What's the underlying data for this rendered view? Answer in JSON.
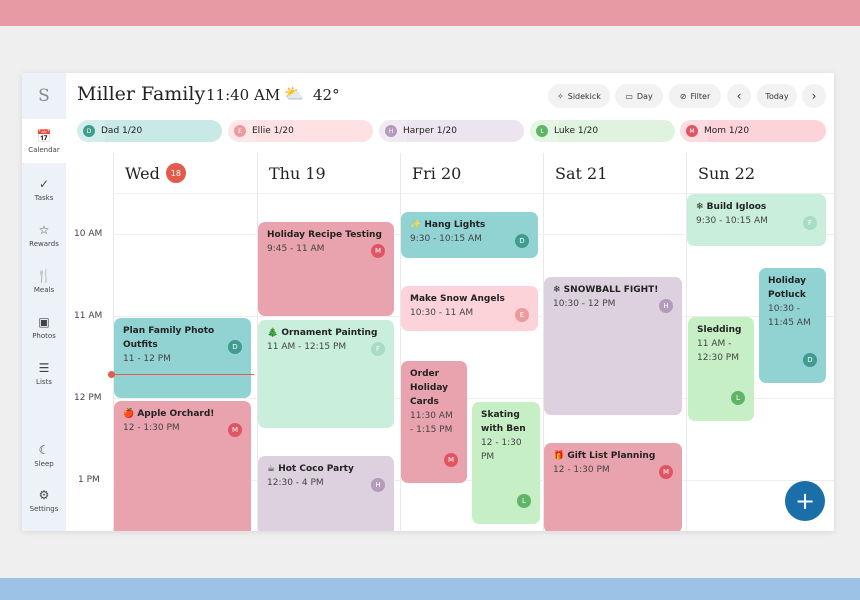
{
  "header": {
    "logo": "S",
    "title": "Miller Family",
    "time": "11:40 AM",
    "weather_icon": "partly-cloudy-icon",
    "temperature": "42°"
  },
  "toolbar": {
    "sidekick": "Sidekick",
    "day": "Day",
    "filter": "Filter",
    "today": "Today"
  },
  "sidebar": [
    {
      "label": "Calendar",
      "icon": "calendar-icon"
    },
    {
      "label": "Tasks",
      "icon": "check-icon"
    },
    {
      "label": "Rewards",
      "icon": "star-icon"
    },
    {
      "label": "Meals",
      "icon": "utensils-icon"
    },
    {
      "label": "Photos",
      "icon": "photo-icon"
    },
    {
      "label": "Lists",
      "icon": "list-icon"
    },
    {
      "label": "Sleep",
      "icon": "moon-icon"
    },
    {
      "label": "Settings",
      "icon": "gear-icon"
    }
  ],
  "members": [
    {
      "initial": "D",
      "label": "Dad 1/20",
      "color": "#3f9c8f",
      "bg": "#c8e9e5"
    },
    {
      "initial": "E",
      "label": "Ellie 1/20",
      "color": "#ee9a9c",
      "bg": "#fde1e3"
    },
    {
      "initial": "H",
      "label": "Harper 1/20",
      "color": "#b49bbc",
      "bg": "#ece4ee"
    },
    {
      "initial": "L",
      "label": "Luke 1/20",
      "color": "#5fb466",
      "bg": "#dff3df"
    },
    {
      "initial": "M",
      "label": "Mom 1/20",
      "color": "#e05563",
      "bg": "#fbd3d8"
    }
  ],
  "days": [
    {
      "name": "Wed",
      "num": "18"
    },
    {
      "name": "Thu 19"
    },
    {
      "name": "Fri 20"
    },
    {
      "name": "Sat 21"
    },
    {
      "name": "Sun 22"
    }
  ],
  "hours": [
    "10 AM",
    "11 AM",
    "12 PM",
    "1 PM"
  ],
  "events": [
    {
      "title": "Plan Family Photo Outfits",
      "time": "11 - 12 PM",
      "who": "D"
    },
    {
      "title": "🍎 Apple Orchard!",
      "time": "12 - 1:30 PM",
      "who": "M"
    },
    {
      "title": "Holiday Recipe Testing",
      "time": "9:45 - 11 AM",
      "who": "M"
    },
    {
      "title": "🎄 Ornament Painting",
      "time": "11 AM - 12:15 PM",
      "who": "F"
    },
    {
      "title": "☕ Hot Coco Party",
      "time": "12:30 - 4 PM",
      "who": "H"
    },
    {
      "title": "✨ Hang Lights",
      "time": "9:30 - 10:15 AM",
      "who": "D"
    },
    {
      "title": "Make Snow Angels",
      "time": "10:30 - 11 AM",
      "who": "E"
    },
    {
      "title": "Order Holiday Cards",
      "time": "11:30 AM - 1:15 PM",
      "who": "M"
    },
    {
      "title": "Skating with Ben",
      "time": "12 - 1:30 PM",
      "who": "L"
    },
    {
      "title": "❄ SNOWBALL FIGHT!",
      "time": "10:30 - 12 PM",
      "who": "H"
    },
    {
      "title": "🎁 Gift List Planning",
      "time": "12 - 1:30 PM",
      "who": "M"
    },
    {
      "title": "❄ Build Igloos",
      "time": "9:30 - 10:15 AM",
      "who": "F"
    },
    {
      "title": "Sledding",
      "time": "11 AM - 12:30 PM",
      "who": "L"
    },
    {
      "title": "Holiday Potluck",
      "time": "10:30 - 11:45 AM",
      "who": "D"
    }
  ],
  "fab": "+"
}
